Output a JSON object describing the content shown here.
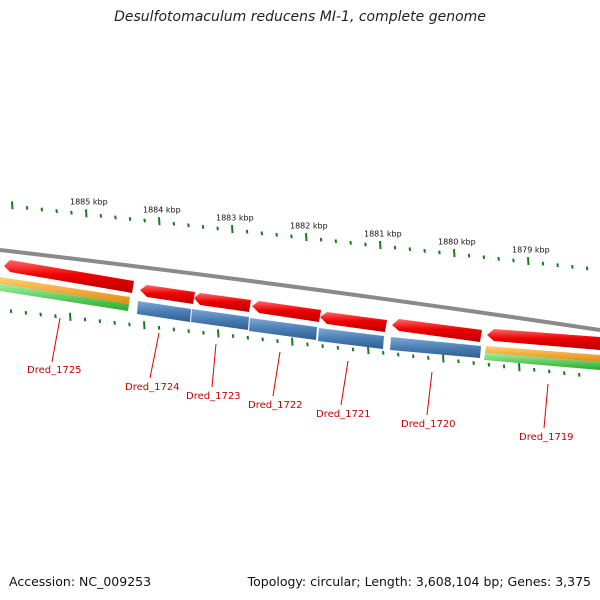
{
  "title": "Desulfotomaculum reducens MI-1, complete genome",
  "footer": {
    "accession": "Accession: NC_009253",
    "summary": "Topology: circular; Length: 3,608,104 bp; Genes: 3,375"
  },
  "axis_ticks": [
    {
      "label": "1885 kbp",
      "kbp": 1885
    },
    {
      "label": "1884 kbp",
      "kbp": 1884
    },
    {
      "label": "1883 kbp",
      "kbp": 1883
    },
    {
      "label": "1882 kbp",
      "kbp": 1882
    },
    {
      "label": "1881 kbp",
      "kbp": 1881
    },
    {
      "label": "1880 kbp",
      "kbp": 1880
    },
    {
      "label": "1879 kbp",
      "kbp": 1879
    }
  ],
  "genes": [
    {
      "name": "Dred_1725"
    },
    {
      "name": "Dred_1724"
    },
    {
      "name": "Dred_1723"
    },
    {
      "name": "Dred_1722"
    },
    {
      "name": "Dred_1721"
    },
    {
      "name": "Dred_1720"
    },
    {
      "name": "Dred_1719"
    }
  ],
  "colors": {
    "backbone": "#8a8a8a",
    "cds": "#e60000",
    "protein": "#4a7fb5",
    "orange_track": "#f0a020",
    "green_track": "#44c044",
    "tick": "#1a7a1a",
    "gene_label": "#c80000"
  }
}
